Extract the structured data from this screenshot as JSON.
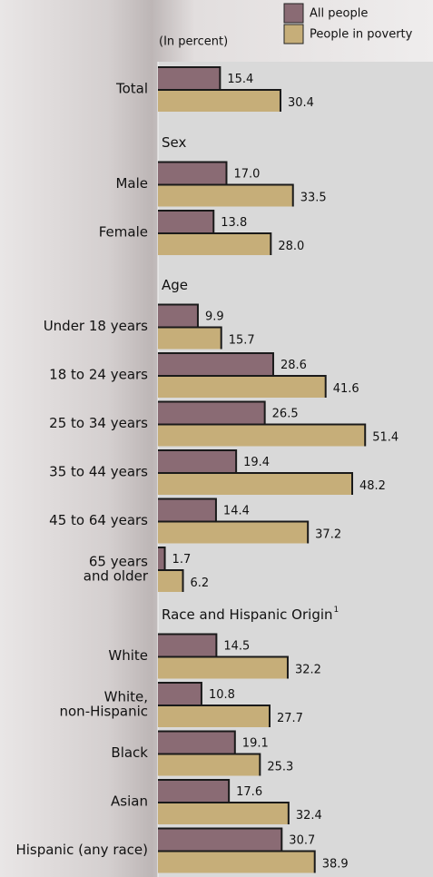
{
  "chart_data": {
    "type": "bar",
    "orientation": "horizontal",
    "note": "(In percent)",
    "series": [
      {
        "name": "All people",
        "color": "#8a6b74"
      },
      {
        "name": "People in poverty",
        "color": "#c6ae79"
      }
    ],
    "groups": [
      {
        "categories": [
          [
            "Total"
          ]
        ],
        "values": [
          [
            15.4
          ],
          [
            30.4
          ]
        ],
        "value_labels": [
          [
            "15.4"
          ],
          [
            "30.4"
          ]
        ]
      },
      {
        "heading": "Sex",
        "categories": [
          [
            "Male"
          ],
          [
            "Female"
          ]
        ],
        "values": [
          [
            17.0,
            13.8
          ],
          [
            33.5,
            28.0
          ]
        ],
        "value_labels": [
          [
            "17.0",
            "13.8"
          ],
          [
            "33.5",
            "28.0"
          ]
        ]
      },
      {
        "heading": "Age",
        "categories": [
          [
            "Under 18 years"
          ],
          [
            "18 to 24 years"
          ],
          [
            "25 to 34 years"
          ],
          [
            "35 to 44 years"
          ],
          [
            "45 to 64 years"
          ],
          [
            "65 years",
            "and older"
          ]
        ],
        "values": [
          [
            9.9,
            28.6,
            26.5,
            19.4,
            14.4,
            1.7
          ],
          [
            15.7,
            41.6,
            51.4,
            48.2,
            37.2,
            6.2
          ]
        ],
        "value_labels": [
          [
            "9.9",
            "28.6",
            "26.5",
            "19.4",
            "14.4",
            "1.7"
          ],
          [
            "15.7",
            "41.6",
            "51.4",
            "48.2",
            "37.2",
            "6.2"
          ]
        ]
      },
      {
        "heading": "Race and Hispanic Origin",
        "heading_note": "1",
        "categories": [
          [
            "White"
          ],
          [
            "White,",
            "non-Hispanic"
          ],
          [
            "Black"
          ],
          [
            "Asian"
          ],
          [
            "Hispanic (any race)"
          ]
        ],
        "values": [
          [
            14.5,
            10.8,
            19.1,
            17.6,
            30.7
          ],
          [
            32.2,
            27.7,
            25.3,
            32.4,
            38.9
          ]
        ],
        "value_labels": [
          [
            "14.5",
            "10.8",
            "19.1",
            "17.6",
            "30.7"
          ],
          [
            "32.2",
            "27.7",
            "25.3",
            "32.4",
            "38.9"
          ]
        ]
      }
    ]
  }
}
